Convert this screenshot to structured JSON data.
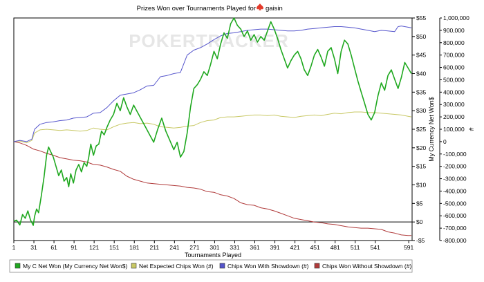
{
  "chart_data": {
    "type": "line",
    "title_prefix": "Prizes Won over Tournaments Played for",
    "player": "gaisin",
    "player_icon": "poker-spade-icon",
    "xlabel": "Tournaments Played",
    "ylabel_right_money": "My Currency Net Won$",
    "ylabel_right_chips": "#",
    "watermark": "POKERTRACKER",
    "x_ticks": [
      1,
      31,
      61,
      91,
      121,
      151,
      181,
      211,
      241,
      271,
      301,
      331,
      361,
      391,
      421,
      451,
      481,
      511,
      541,
      591
    ],
    "xlim": [
      1,
      596
    ],
    "money_axis": {
      "ylim": [
        -5,
        55
      ],
      "ticks": [
        -5,
        0,
        5,
        10,
        15,
        20,
        25,
        30,
        35,
        40,
        45,
        50,
        55
      ],
      "tick_labels": [
        "-$5",
        "$0",
        "$5",
        "$10",
        "$15",
        "$20",
        "$25",
        "$30",
        "$35",
        "$40",
        "$45",
        "$50",
        "$55"
      ]
    },
    "chips_axis": {
      "ylim": [
        -800000,
        1000000
      ],
      "ticks": [
        -800000,
        -700000,
        -600000,
        -500000,
        -400000,
        -300000,
        -200000,
        -100000,
        0,
        100000,
        200000,
        300000,
        400000,
        500000,
        600000,
        700000,
        800000,
        900000,
        1000000
      ],
      "tick_labels": [
        "-800,000",
        "-700,000",
        "-600,000",
        "-500,000",
        "-400,000",
        "-300,000",
        "-200,000",
        "-100,000",
        "0",
        "100,000",
        "200,000",
        "300,000",
        "400,000",
        "500,000",
        "600,000",
        "700,000",
        "800,000",
        "900,000",
        "1,000,000"
      ]
    },
    "grid": false,
    "legend_position": "bottom",
    "series": [
      {
        "name": "My C Net Won (My Currency Net Won$)",
        "axis": "money",
        "color": "#1fa81f",
        "x": [
          1,
          5,
          10,
          14,
          18,
          22,
          26,
          30,
          32,
          35,
          38,
          42,
          46,
          50,
          53,
          56,
          60,
          64,
          68,
          72,
          76,
          80,
          83,
          86,
          90,
          94,
          98,
          102,
          106,
          110,
          113,
          116,
          120,
          124,
          128,
          132,
          136,
          140,
          145,
          150,
          155,
          160,
          165,
          170,
          175,
          180,
          186,
          192,
          198,
          204,
          210,
          216,
          222,
          228,
          234,
          240,
          245,
          250,
          255,
          260,
          265,
          270,
          275,
          280,
          285,
          290,
          295,
          300,
          305,
          310,
          315,
          320,
          325,
          330,
          335,
          340,
          345,
          350,
          355,
          360,
          365,
          370,
          375,
          380,
          385,
          390,
          395,
          400,
          405,
          410,
          415,
          420,
          425,
          430,
          435,
          440,
          445,
          450,
          455,
          460,
          465,
          470,
          475,
          480,
          485,
          490,
          495,
          500,
          505,
          510,
          515,
          520,
          525,
          530,
          535,
          540,
          545,
          550,
          555,
          560,
          565,
          570,
          575,
          580,
          585,
          590,
          595
        ],
        "y": [
          0.2,
          0.5,
          -0.8,
          2.0,
          1.0,
          3.0,
          0.5,
          -0.9,
          1.5,
          3.5,
          2.5,
          7.0,
          12.0,
          18.0,
          20.2,
          19.0,
          17.5,
          15.0,
          12.5,
          14.0,
          11.0,
          12.0,
          9.5,
          13.0,
          10.5,
          14.0,
          15.5,
          13.5,
          16.0,
          15.0,
          17.5,
          21.0,
          18.0,
          20.5,
          21.0,
          24.5,
          23.5,
          25.5,
          27.5,
          29.0,
          32.0,
          30.0,
          33.5,
          31.0,
          29.0,
          31.5,
          29.5,
          27.5,
          25.5,
          23.5,
          21.5,
          25.0,
          28.0,
          24.5,
          22.0,
          19.5,
          21.5,
          17.5,
          19.0,
          24.0,
          31.0,
          36.0,
          37.0,
          38.5,
          40.5,
          39.5,
          42.5,
          46.0,
          44.0,
          48.0,
          51.0,
          49.5,
          53.5,
          55.0,
          53.0,
          52.0,
          50.0,
          51.5,
          49.0,
          50.5,
          48.5,
          50.0,
          49.0,
          51.5,
          54.0,
          52.0,
          49.5,
          46.5,
          44.0,
          41.5,
          43.5,
          45.0,
          46.0,
          44.0,
          41.0,
          39.5,
          42.0,
          45.0,
          46.5,
          44.5,
          42.0,
          46.0,
          47.0,
          44.0,
          40.0,
          46.0,
          49.0,
          48.0,
          45.0,
          41.5,
          38.0,
          35.0,
          32.0,
          29.0,
          27.5,
          29.5,
          34.0,
          37.5,
          35.5,
          39.5,
          41.0,
          38.5,
          36.0,
          39.0,
          43.0,
          41.5,
          40.0
        ]
      },
      {
        "name": "Net Expected Chips Won (#)",
        "axis": "chips",
        "color": "#c8c864",
        "x": [
          1,
          10,
          20,
          28,
          32,
          40,
          50,
          60,
          70,
          80,
          90,
          100,
          110,
          120,
          130,
          140,
          150,
          160,
          170,
          180,
          190,
          200,
          210,
          220,
          230,
          240,
          250,
          260,
          270,
          280,
          290,
          300,
          310,
          320,
          330,
          340,
          350,
          360,
          370,
          380,
          390,
          400,
          410,
          420,
          430,
          440,
          450,
          460,
          470,
          480,
          490,
          500,
          510,
          520,
          530,
          540,
          550,
          560,
          570,
          580,
          590,
          595
        ],
        "y": [
          0,
          5000,
          -10000,
          10000,
          70000,
          95000,
          100000,
          95000,
          90000,
          95000,
          90000,
          85000,
          90000,
          110000,
          100000,
          95000,
          120000,
          140000,
          150000,
          155000,
          145000,
          150000,
          140000,
          120000,
          115000,
          110000,
          115000,
          125000,
          130000,
          155000,
          170000,
          175000,
          195000,
          200000,
          200000,
          205000,
          210000,
          215000,
          215000,
          210000,
          215000,
          205000,
          200000,
          195000,
          205000,
          210000,
          215000,
          210000,
          220000,
          230000,
          225000,
          235000,
          240000,
          240000,
          235000,
          235000,
          230000,
          225000,
          220000,
          215000,
          205000,
          200000
        ]
      },
      {
        "name": "Chips Won With Showdown (#)",
        "axis": "chips",
        "color": "#5555cc",
        "x": [
          1,
          10,
          20,
          28,
          32,
          40,
          50,
          60,
          70,
          80,
          90,
          100,
          110,
          120,
          130,
          140,
          150,
          160,
          170,
          180,
          190,
          200,
          210,
          220,
          230,
          240,
          250,
          260,
          270,
          280,
          290,
          300,
          310,
          320,
          330,
          340,
          350,
          360,
          370,
          380,
          390,
          400,
          410,
          420,
          430,
          440,
          450,
          460,
          470,
          480,
          490,
          500,
          510,
          520,
          530,
          540,
          550,
          560,
          570,
          575,
          580,
          590,
          595
        ],
        "y": [
          0,
          10000,
          0,
          20000,
          100000,
          140000,
          155000,
          160000,
          170000,
          175000,
          190000,
          195000,
          200000,
          230000,
          235000,
          275000,
          330000,
          375000,
          385000,
          395000,
          420000,
          450000,
          455000,
          525000,
          535000,
          550000,
          560000,
          700000,
          740000,
          760000,
          790000,
          825000,
          855000,
          875000,
          880000,
          890000,
          900000,
          905000,
          910000,
          910000,
          905000,
          900000,
          895000,
          895000,
          900000,
          910000,
          915000,
          920000,
          925000,
          930000,
          930000,
          925000,
          920000,
          910000,
          900000,
          890000,
          900000,
          895000,
          890000,
          930000,
          935000,
          925000,
          920000
        ]
      },
      {
        "name": "Chips Won Without Showdown (#)",
        "axis": "chips",
        "color": "#b03a3a",
        "x": [
          1,
          10,
          20,
          30,
          40,
          50,
          60,
          70,
          80,
          90,
          100,
          110,
          120,
          130,
          140,
          150,
          160,
          170,
          180,
          190,
          200,
          210,
          220,
          230,
          240,
          250,
          260,
          270,
          280,
          290,
          300,
          310,
          320,
          330,
          340,
          350,
          360,
          370,
          380,
          390,
          400,
          410,
          420,
          430,
          440,
          450,
          460,
          470,
          480,
          490,
          500,
          510,
          520,
          530,
          540,
          550,
          560,
          570,
          580,
          590,
          595
        ],
        "y": [
          0,
          -10000,
          -30000,
          -60000,
          -75000,
          -95000,
          -110000,
          -130000,
          -140000,
          -150000,
          -155000,
          -165000,
          -185000,
          -190000,
          -205000,
          -225000,
          -240000,
          -280000,
          -305000,
          -320000,
          -335000,
          -340000,
          -345000,
          -350000,
          -355000,
          -360000,
          -370000,
          -375000,
          -385000,
          -405000,
          -410000,
          -430000,
          -440000,
          -460000,
          -495000,
          -510000,
          -515000,
          -535000,
          -545000,
          -560000,
          -580000,
          -600000,
          -620000,
          -630000,
          -640000,
          -650000,
          -655000,
          -665000,
          -670000,
          -680000,
          -690000,
          -695000,
          -700000,
          -700000,
          -705000,
          -710000,
          -730000,
          -740000,
          -755000,
          -760000,
          -760000
        ]
      }
    ]
  }
}
